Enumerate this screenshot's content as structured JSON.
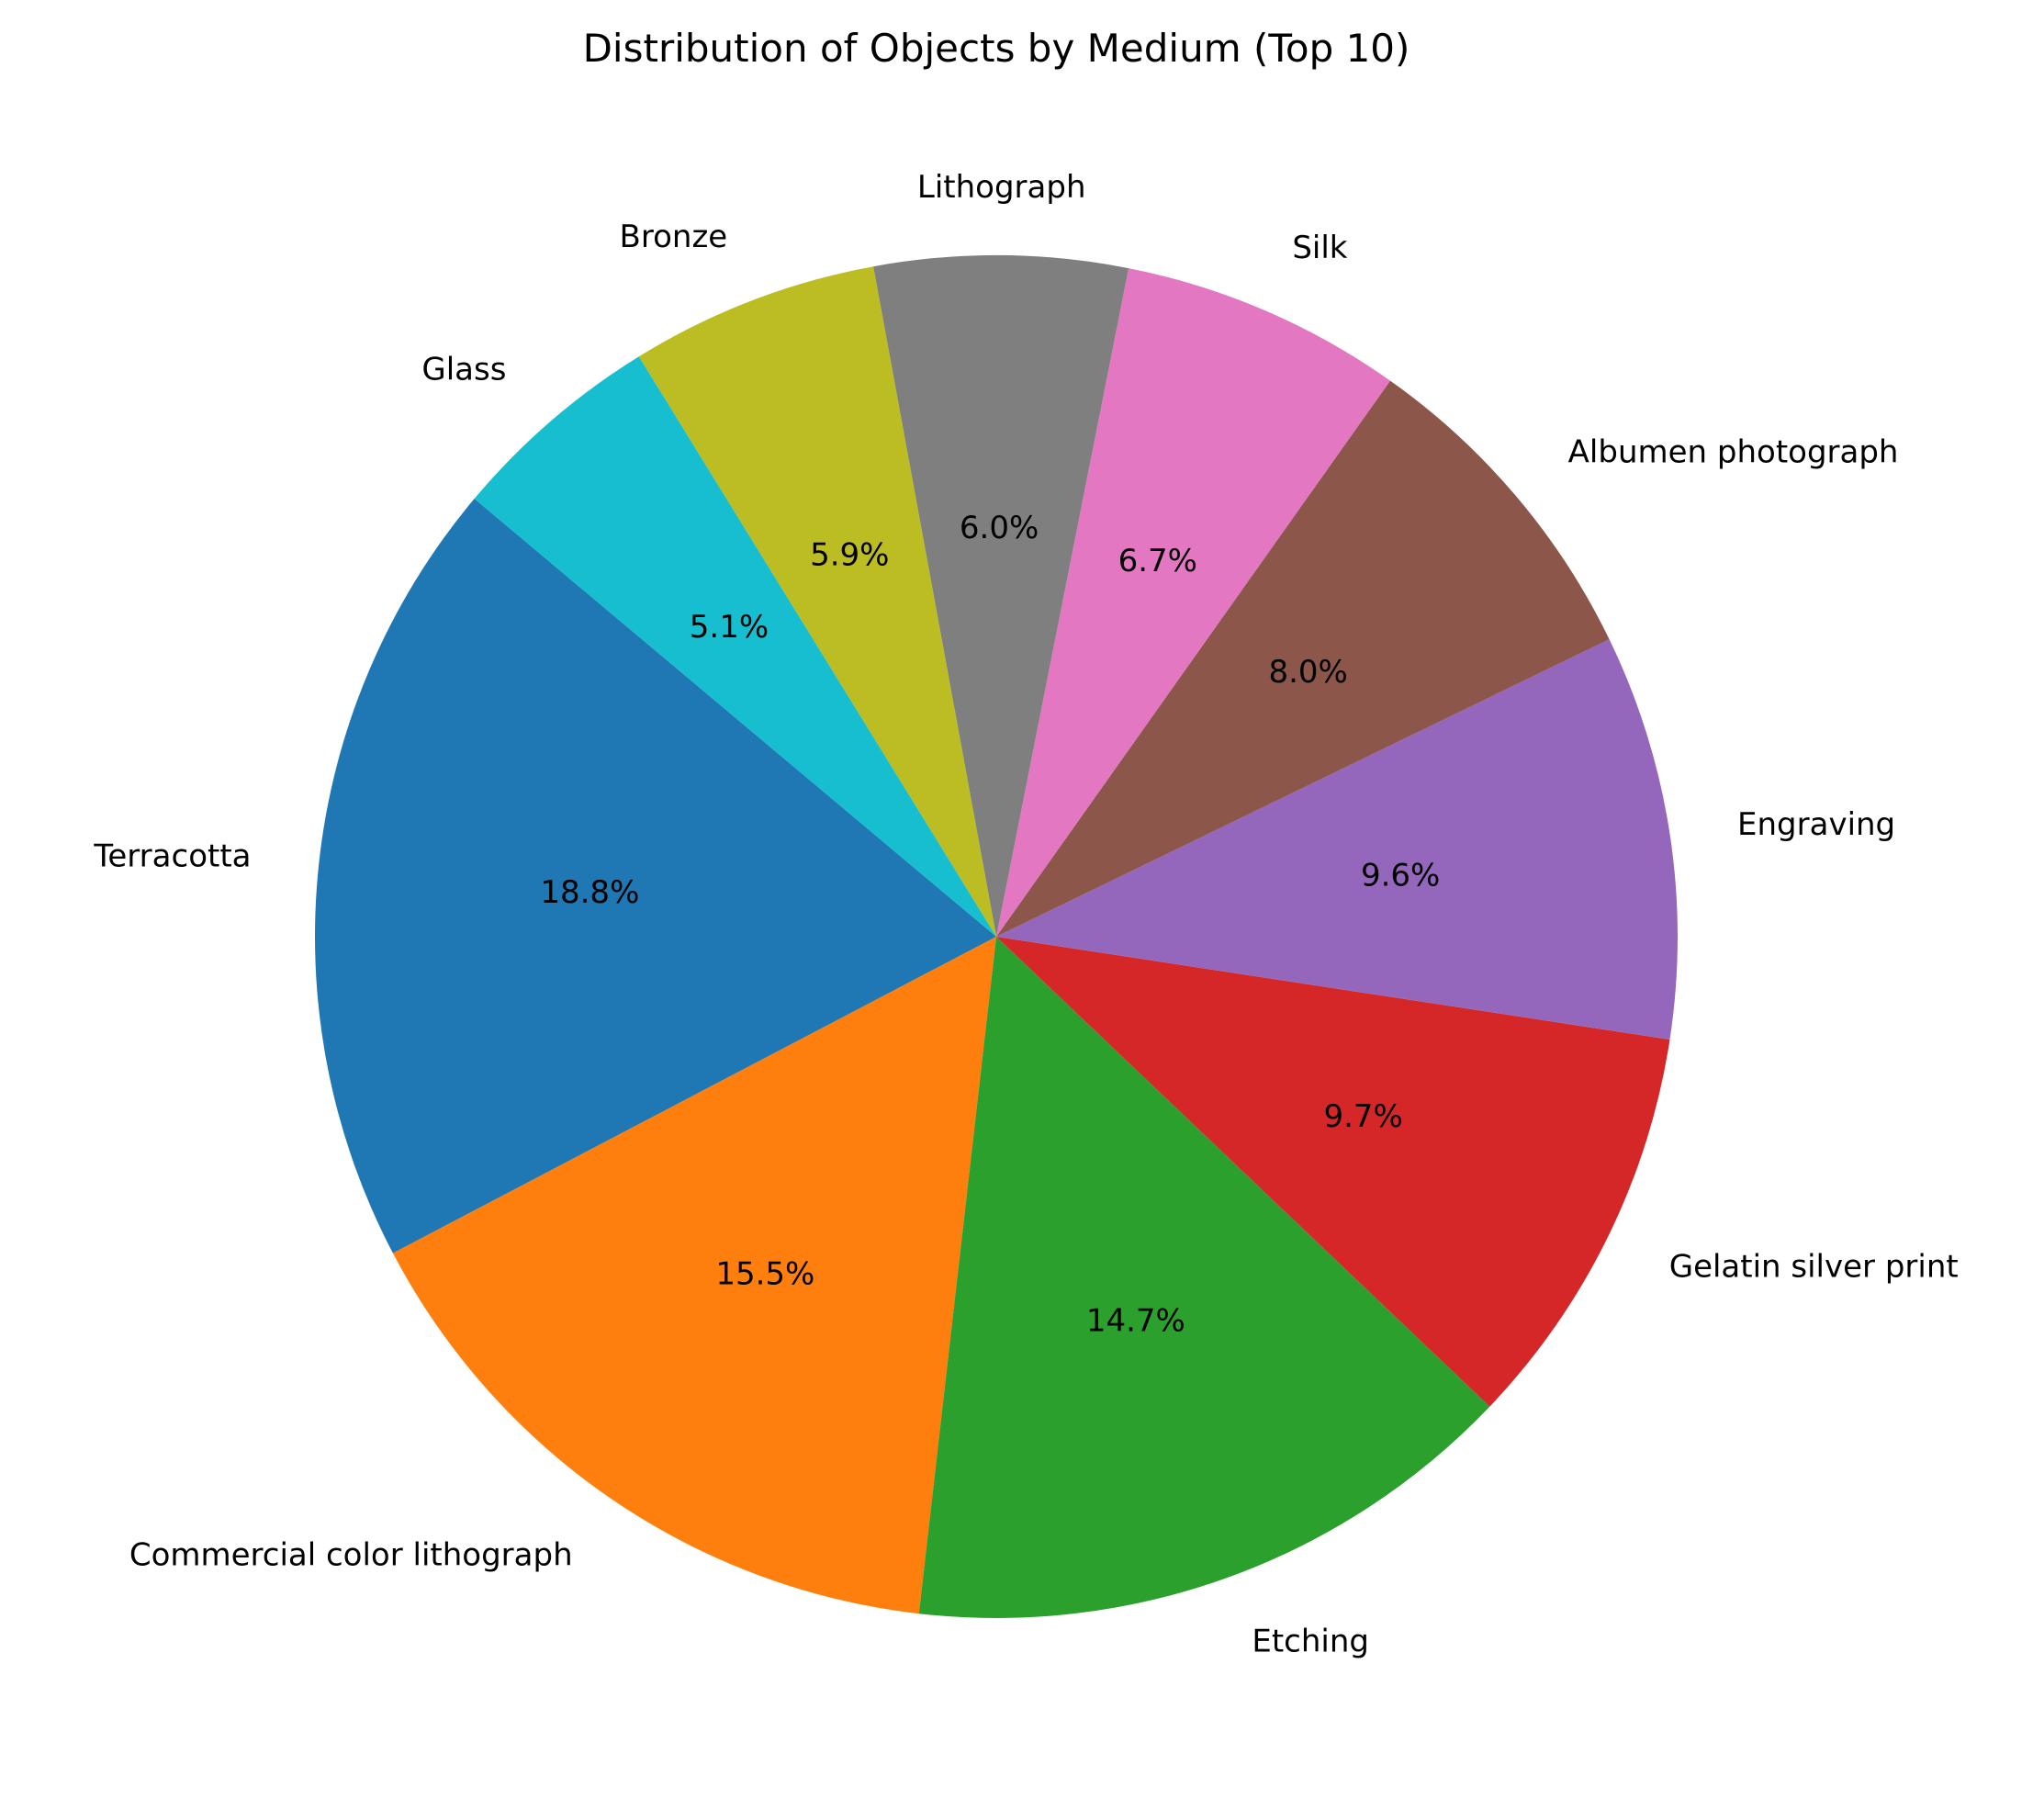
{
  "chart_data": {
    "type": "pie",
    "title": "Distribution of Objects by Medium (Top 10)",
    "categories": [
      "Terracotta",
      "Commercial color lithograph",
      "Etching",
      "Gelatin silver print",
      "Engraving",
      "Albumen photograph",
      "Silk",
      "Lithograph",
      "Bronze",
      "Glass"
    ],
    "values": [
      18.8,
      15.5,
      14.7,
      9.7,
      9.6,
      8.0,
      6.7,
      6.0,
      5.9,
      5.1
    ],
    "percent_labels": [
      "18.8%",
      "15.5%",
      "14.7%",
      "9.7%",
      "9.6%",
      "8.0%",
      "6.7%",
      "6.0%",
      "5.9%",
      "5.1%"
    ],
    "colors": [
      "#1f77b4",
      "#ff7f0e",
      "#2ca02c",
      "#d62728",
      "#9467bd",
      "#8c564b",
      "#e377c2",
      "#7f7f7f",
      "#bcbd22",
      "#17becf"
    ],
    "start_angle_deg": 140,
    "direction": "counterclockwise"
  }
}
